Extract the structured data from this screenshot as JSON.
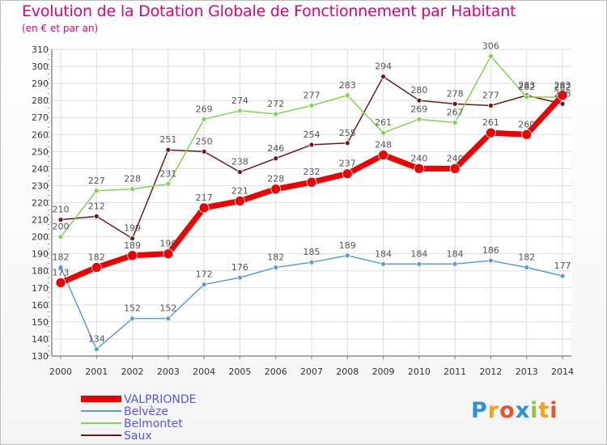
{
  "title": "Evolution de la Dotation Globale de Fonctionnement par Habitant",
  "subtitle": "(en € et par an)",
  "logo": {
    "text": "Proxiti",
    "letters": [
      "P",
      "r",
      "o",
      "x",
      "i",
      "t",
      "i"
    ],
    "colors": [
      "#2f8fd8",
      "#f7a11a",
      "#e8532a",
      "#2f8fd8",
      "#8cc63f",
      "#f7a11a",
      "#e8532a"
    ]
  },
  "chart_data": {
    "type": "line",
    "x": [
      2000,
      2001,
      2002,
      2003,
      2004,
      2005,
      2006,
      2007,
      2008,
      2009,
      2010,
      2011,
      2012,
      2013,
      2014
    ],
    "ylim": [
      130,
      310
    ],
    "yticks": [
      130,
      140,
      150,
      160,
      170,
      180,
      190,
      200,
      210,
      220,
      230,
      240,
      250,
      260,
      270,
      280,
      290,
      300,
      310
    ],
    "grid": true,
    "legend_position": "bottom-left",
    "series": [
      {
        "name": "Saux",
        "color": "#6b1a1a",
        "width": 1.5,
        "marker": 3,
        "values": [
          210,
          212,
          199,
          251,
          250,
          238,
          246,
          254,
          255,
          294,
          280,
          278,
          277,
          283,
          278
        ]
      },
      {
        "name": "Belmontet",
        "color": "#7ed64d",
        "width": 1.5,
        "marker": 3,
        "values": [
          200,
          227,
          228,
          231,
          269,
          274,
          272,
          277,
          283,
          261,
          269,
          267,
          306,
          282,
          282
        ]
      },
      {
        "name": "Belvèze",
        "color": "#5b9bd5",
        "width": 1.5,
        "marker": 3,
        "values": [
          182,
          134,
          152,
          152,
          172,
          176,
          182,
          185,
          189,
          184,
          184,
          184,
          186,
          182,
          177
        ]
      },
      {
        "name": "VALPRIONDE",
        "color": "#ee0000",
        "width": 7,
        "marker": 6,
        "values": [
          173,
          182,
          189,
          190,
          217,
          221,
          228,
          232,
          237,
          248,
          240,
          240,
          261,
          260,
          283
        ]
      }
    ]
  }
}
